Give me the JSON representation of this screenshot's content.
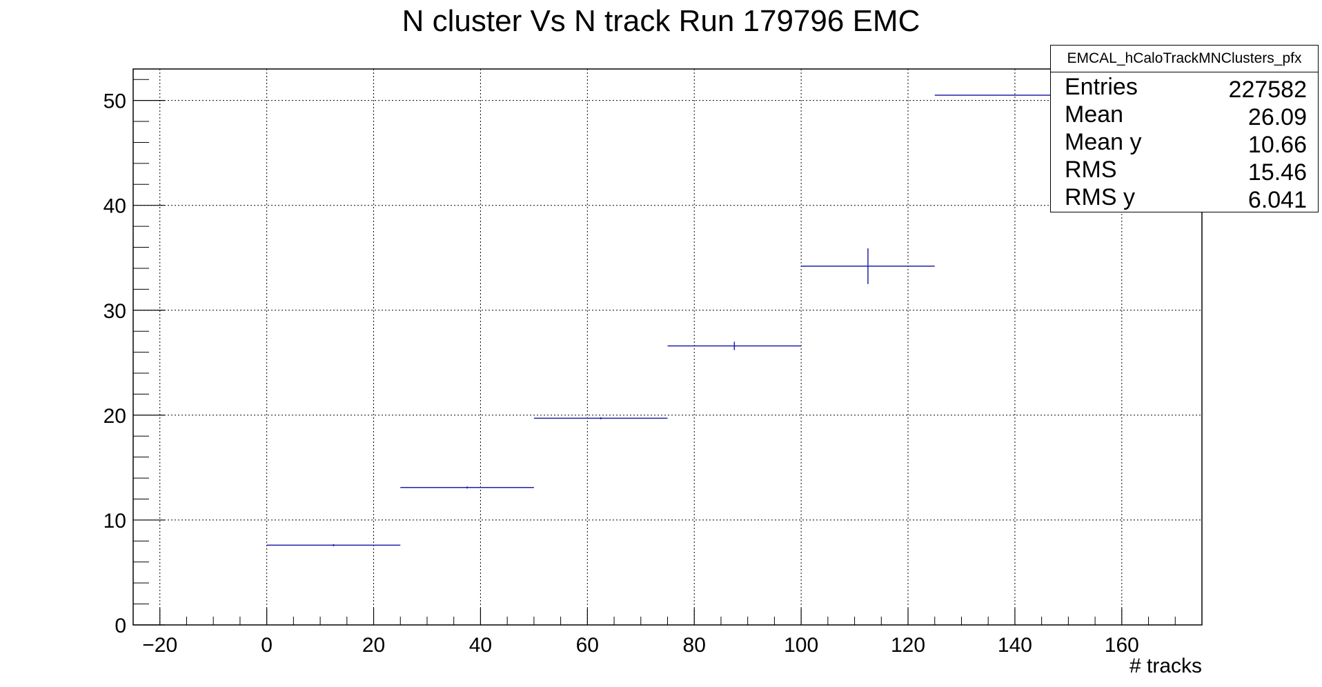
{
  "chart_data": {
    "type": "line",
    "title": "N cluster Vs N track Run 179796 EMC",
    "xlabel": "# tracks",
    "ylabel": "",
    "xlim": [
      -25,
      175
    ],
    "ylim": [
      0,
      53
    ],
    "grid": true,
    "legend": "none",
    "xticks": [
      -20,
      0,
      20,
      40,
      60,
      80,
      100,
      120,
      140,
      160
    ],
    "yticks": [
      0,
      10,
      20,
      30,
      40,
      50
    ],
    "series": [
      {
        "style": "profile-bins-with-error-bars",
        "color": "#1f1fa8",
        "bins": [
          {
            "xlow": 0,
            "xhigh": 25,
            "y": 7.6,
            "err": 0.1
          },
          {
            "xlow": 25,
            "xhigh": 50,
            "y": 13.1,
            "err": 0.1
          },
          {
            "xlow": 50,
            "xhigh": 75,
            "y": 19.7,
            "err": 0.1
          },
          {
            "xlow": 75,
            "xhigh": 100,
            "y": 26.6,
            "err": 0.4
          },
          {
            "xlow": 100,
            "xhigh": 125,
            "y": 34.2,
            "err": 1.7
          },
          {
            "xlow": 125,
            "xhigh": 150,
            "y": 50.5,
            "err": 0.0
          }
        ]
      }
    ]
  },
  "stats": {
    "name": "EMCAL_hCaloTrackMNClusters_pfx",
    "rows": [
      {
        "key": "Entries",
        "value": "227582"
      },
      {
        "key": "Mean",
        "value": "26.09"
      },
      {
        "key": "Mean y",
        "value": "10.66"
      },
      {
        "key": "RMS",
        "value": "15.46"
      },
      {
        "key": "RMS y",
        "value": "6.041"
      }
    ]
  }
}
